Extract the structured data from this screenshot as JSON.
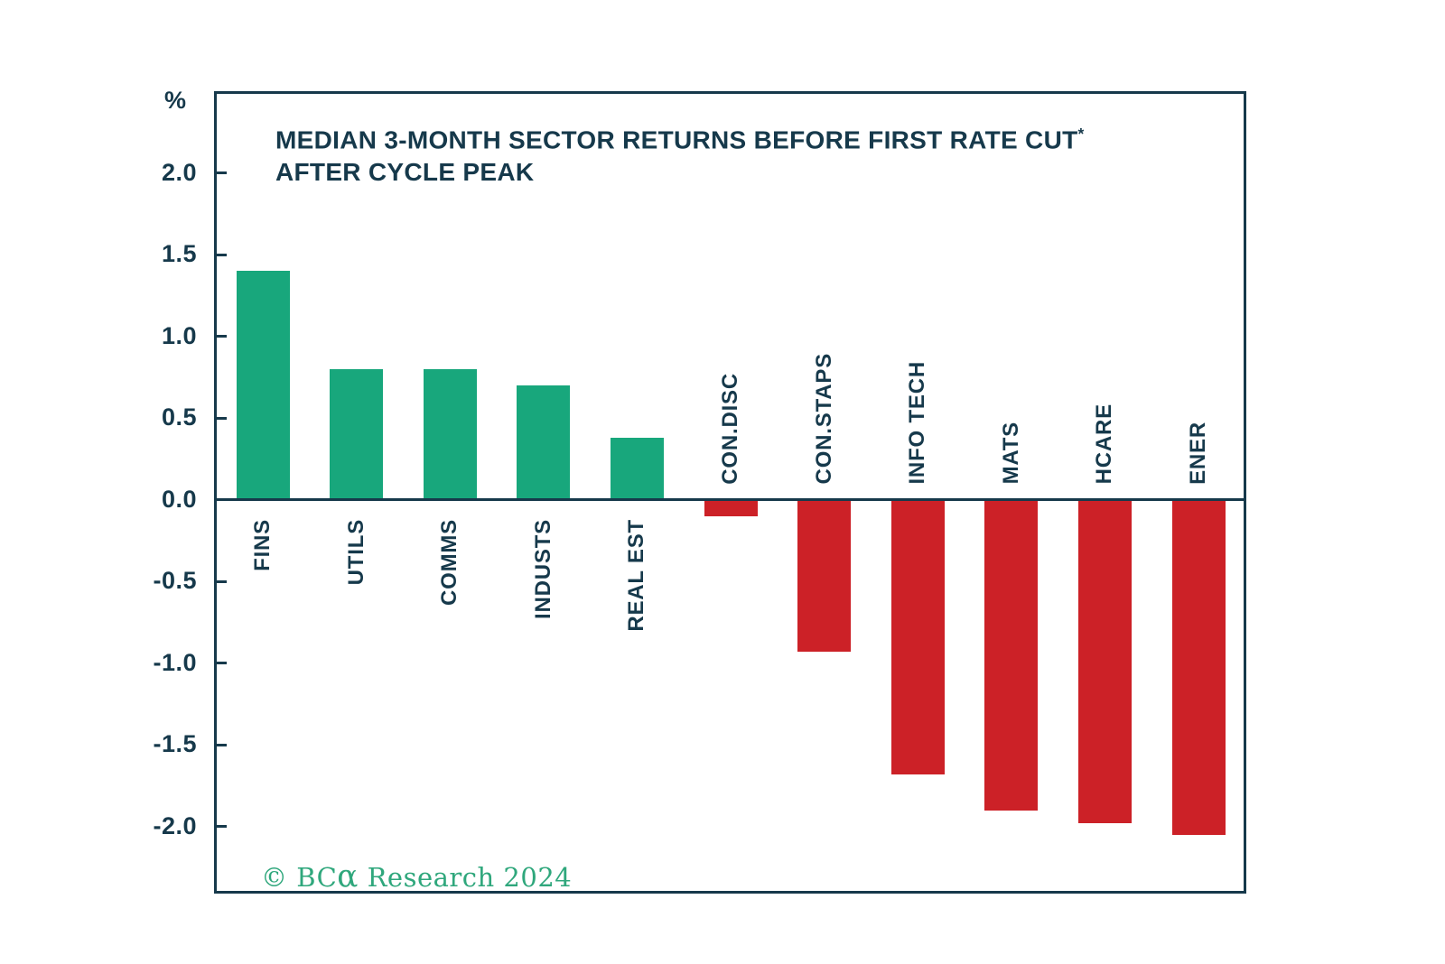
{
  "chart": {
    "unit_label": "%",
    "title_line1": "MEDIAN 3-MONTH SECTOR RETURNS BEFORE FIRST RATE CUT",
    "title_superscript": "*",
    "title_line2": "AFTER CYCLE PEAK",
    "source_prefix": "© BC",
    "source_alpha": "α",
    "source_suffix": " Research 2024"
  },
  "chart_data": {
    "type": "bar",
    "title": "MEDIAN 3-MONTH SECTOR RETURNS BEFORE FIRST RATE CUT* AFTER CYCLE PEAK",
    "unit": "%",
    "categories": [
      "FINS",
      "UTILS",
      "COMMS",
      "INDUSTS",
      "REAL EST",
      "CON.DISC",
      "CON.STAPS",
      "INFO TECH",
      "MATS",
      "HCARE",
      "ENER"
    ],
    "values": [
      1.4,
      0.8,
      0.8,
      0.7,
      0.38,
      -0.1,
      -0.93,
      -1.68,
      -1.9,
      -1.98,
      -2.05
    ],
    "yticks": [
      "2.0",
      "1.5",
      "1.0",
      "0.5",
      "0.0",
      "-0.5",
      "-1.0",
      "-1.5",
      "-2.0"
    ],
    "ylim": [
      -2.41,
      2.5
    ],
    "grid": false,
    "legend": false,
    "positive_color": "#18a77c",
    "negative_color": "#cc2127",
    "axis_color": "#16394b",
    "source_color": "#2fa77c",
    "source": "© BCα Research 2024"
  }
}
